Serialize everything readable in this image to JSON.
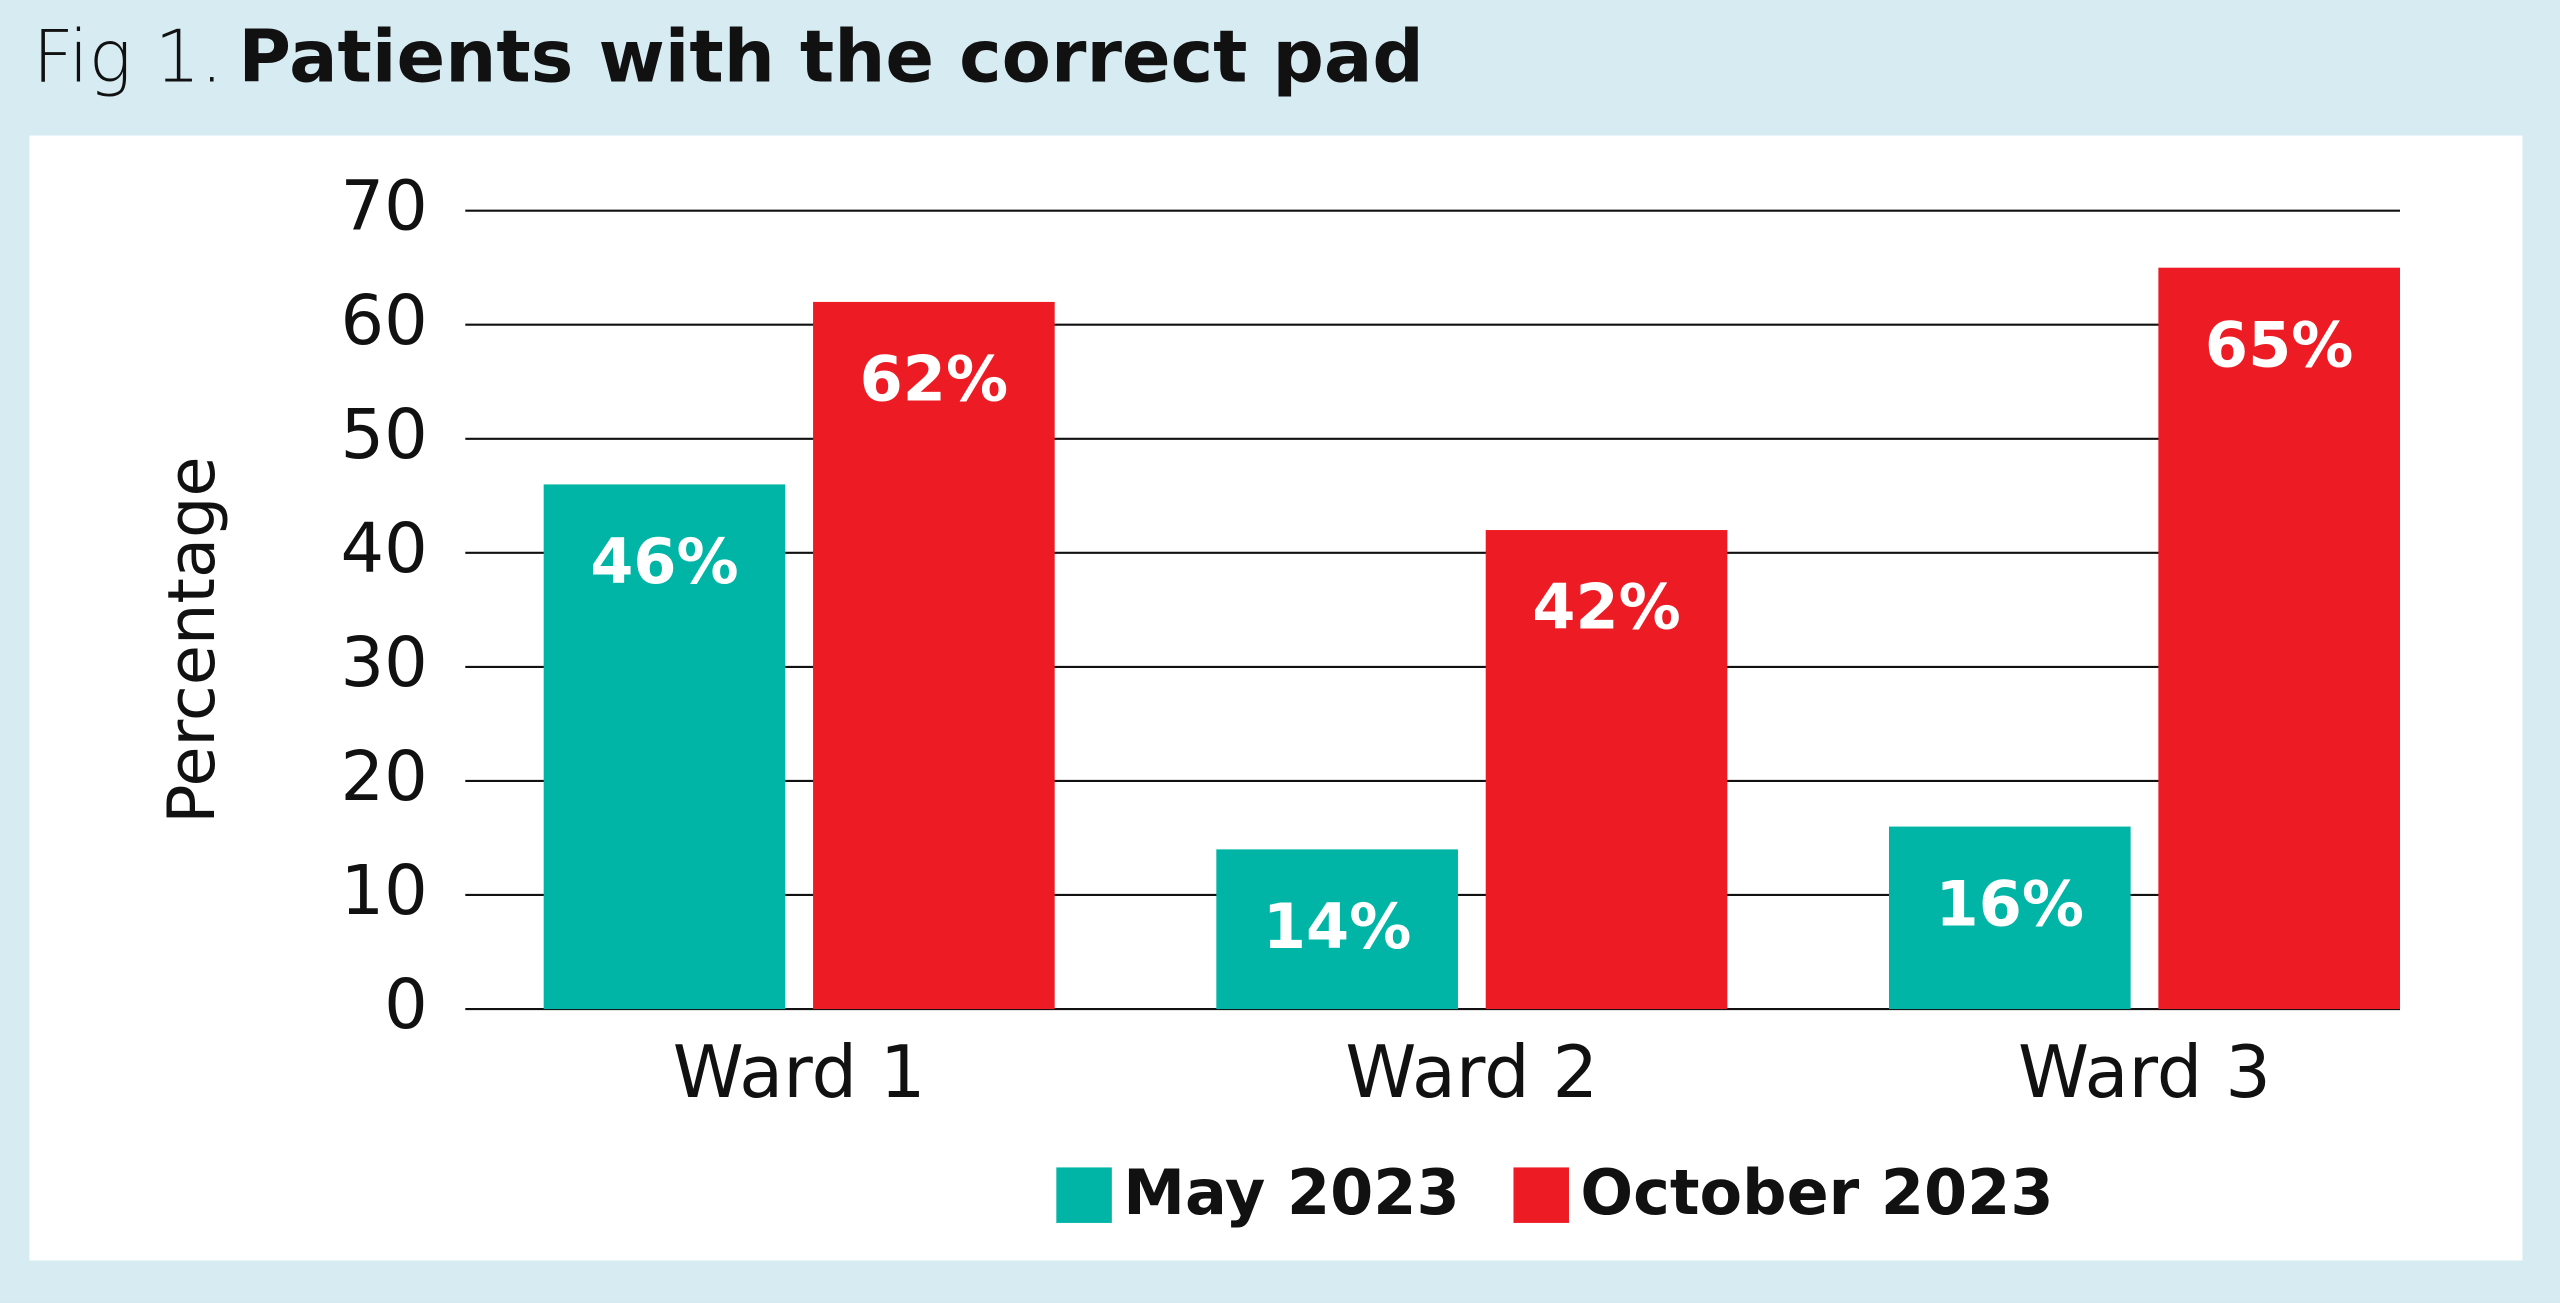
{
  "chart_data": {
    "type": "bar",
    "figure_label": "Fig 1.",
    "title": "Patients with the correct pad",
    "y_label": "Percentage",
    "categories": [
      "Ward 1",
      "Ward 2",
      "Ward 3"
    ],
    "series": [
      {
        "name": "May 2023",
        "color": "#00b5a5",
        "values": [
          46,
          14,
          16
        ],
        "value_labels": [
          "46%",
          "14%",
          "16%"
        ]
      },
      {
        "name": "October 2023",
        "color": "#ed1c24",
        "values": [
          62,
          42,
          65
        ],
        "value_labels": [
          "62%",
          "42%",
          "65%"
        ]
      }
    ],
    "ylim": [
      0,
      70
    ],
    "yticks": [
      0,
      10,
      20,
      30,
      40,
      50,
      60,
      70
    ],
    "grid": true,
    "legend": "bottom"
  }
}
